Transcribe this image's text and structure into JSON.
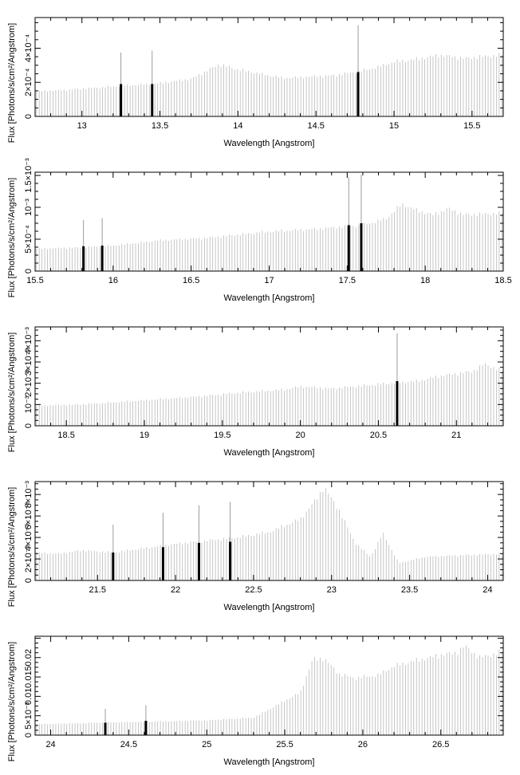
{
  "chart_data": [
    {
      "type": "bar",
      "xlabel": "Wavelength [Angstrom]",
      "ylabel": "Flux [Photons/s/cm²/Angstrom]",
      "xlim": [
        12.7,
        15.7
      ],
      "ylim": [
        0,
        0.00058
      ],
      "x_ticks": [
        13,
        13.5,
        14,
        14.5,
        15,
        15.5
      ],
      "x_tick_labels": [
        "13",
        "13.5",
        "14",
        "14.5",
        "15",
        "15.5"
      ],
      "y_ticks": [
        0,
        0.0002,
        0.0004
      ],
      "y_tick_labels": [
        "0",
        "2×10⁻⁴",
        "4×10⁻⁴"
      ],
      "continuum": {
        "x": [
          12.7,
          12.9,
          13.2,
          13.5,
          13.7,
          13.88,
          14.0,
          14.2,
          14.3,
          14.6,
          14.75,
          14.9,
          15.0,
          15.1,
          15.3,
          15.45,
          15.55,
          15.7
        ],
        "y": [
          0.000148,
          0.000155,
          0.000175,
          0.000195,
          0.00022,
          0.000305,
          0.000275,
          0.00024,
          0.000225,
          0.00024,
          0.000258,
          0.00029,
          0.00032,
          0.00033,
          0.00036,
          0.00034,
          0.00035,
          0.00036
        ]
      },
      "lines": {
        "x": [
          13.25,
          13.45,
          14.77
        ],
        "y": [
          0.00019,
          0.00019,
          0.00026
        ],
        "err": [
          0.000375,
          0.000385,
          0.000535
        ]
      }
    },
    {
      "type": "bar",
      "xlabel": "Wavelength [Angstrom]",
      "ylabel": "Flux [Photons/s/cm²/Angstrom]",
      "xlim": [
        15.5,
        18.5
      ],
      "ylim": [
        0,
        0.00155
      ],
      "x_ticks": [
        15.5,
        16,
        16.5,
        17,
        17.5,
        18,
        18.5
      ],
      "x_tick_labels": [
        "15.5",
        "16",
        "16.5",
        "17",
        "17.5",
        "18",
        "18.5"
      ],
      "y_ticks": [
        0,
        0.0005,
        0.001,
        0.0015
      ],
      "y_tick_labels": [
        "0",
        "5×10⁻⁴",
        "10⁻³",
        "1.5×10⁻³"
      ],
      "continuum": {
        "x": [
          15.5,
          15.8,
          16.0,
          16.3,
          16.6,
          17.0,
          17.3,
          17.6,
          17.75,
          17.85,
          17.95,
          18.05,
          18.15,
          18.25,
          18.5
        ],
        "y": [
          0.00035,
          0.00037,
          0.0004,
          0.00048,
          0.00052,
          0.00062,
          0.00066,
          0.00072,
          0.00082,
          0.00105,
          0.00095,
          0.00088,
          0.00098,
          0.00088,
          0.00091
        ]
      },
      "lines": {
        "x": [
          15.81,
          15.93,
          17.51,
          17.59
        ],
        "y": [
          0.00039,
          0.0004,
          0.00072,
          0.00075
        ],
        "err": [
          0.0008,
          0.00083,
          0.00147,
          0.00151
        ]
      }
    },
    {
      "type": "bar",
      "xlabel": "Wavelength [Angstrom]",
      "ylabel": "Flux [Photons/s/cm²/Angstrom]",
      "xlim": [
        18.3,
        21.3
      ],
      "ylim": [
        0,
        0.00465
      ],
      "x_ticks": [
        18.5,
        19,
        19.5,
        20,
        20.5,
        21
      ],
      "x_tick_labels": [
        "18.5",
        "19",
        "19.5",
        "20",
        "20.5",
        "21"
      ],
      "y_ticks": [
        0,
        0.001,
        0.002,
        0.003,
        0.004
      ],
      "y_tick_labels": [
        "0",
        "10⁻³",
        "2×10⁻³",
        "3×10⁻³",
        "4×10⁻³"
      ],
      "continuum": {
        "x": [
          18.3,
          18.6,
          19.0,
          19.3,
          19.6,
          19.9,
          20.0,
          20.2,
          20.5,
          20.75,
          20.9,
          21.1,
          21.18,
          21.3
        ],
        "y": [
          0.00095,
          0.001,
          0.0012,
          0.00135,
          0.00155,
          0.0017,
          0.00185,
          0.00175,
          0.00195,
          0.0021,
          0.00235,
          0.00255,
          0.0029,
          0.00255
        ]
      },
      "lines": {
        "x": [
          20.62
        ],
        "y": [
          0.0021
        ],
        "err": [
          0.00435
        ]
      }
    },
    {
      "type": "bar",
      "xlabel": "Wavelength [Angstrom]",
      "ylabel": "Flux [Photons/s/cm²/Angstrom]",
      "xlim": [
        21.1,
        24.1
      ],
      "ylim": [
        0,
        0.0092
      ],
      "x_ticks": [
        21.5,
        22,
        22.5,
        23,
        23.5,
        24
      ],
      "x_tick_labels": [
        "21.5",
        "22",
        "22.5",
        "23",
        "23.5",
        "24"
      ],
      "y_ticks": [
        0,
        0.002,
        0.004,
        0.006,
        0.008
      ],
      "y_tick_labels": [
        "0",
        "2×10⁻³",
        "4×10⁻³",
        "6×10⁻³",
        "8×10⁻³"
      ],
      "continuum": {
        "x": [
          21.1,
          21.25,
          21.4,
          21.5,
          21.6,
          22.0,
          22.4,
          22.6,
          22.8,
          22.9,
          22.95,
          23.05,
          23.15,
          23.25,
          23.33,
          23.43,
          23.6,
          24.1
        ],
        "y": [
          0.0026,
          0.0025,
          0.0028,
          0.0027,
          0.0026,
          0.0034,
          0.004,
          0.0045,
          0.0057,
          0.0075,
          0.0087,
          0.0065,
          0.0035,
          0.0022,
          0.0044,
          0.0016,
          0.0022,
          0.0025
        ]
      },
      "lines": {
        "x": [
          21.6,
          21.92,
          22.15,
          22.35
        ],
        "y": [
          0.0026,
          0.0031,
          0.0035,
          0.0036
        ],
        "err": [
          0.0052,
          0.0063,
          0.007,
          0.0073
        ]
      }
    },
    {
      "type": "bar",
      "xlabel": "Wavelength [Angstrom]",
      "ylabel": "Flux [Photons/s/cm²/Angstrom]",
      "xlim": [
        23.9,
        26.9
      ],
      "ylim": [
        0,
        0.0255
      ],
      "x_ticks": [
        24,
        24.5,
        25,
        25.5,
        26,
        26.5
      ],
      "x_tick_labels": [
        "24",
        "24.5",
        "25",
        "25.5",
        "26",
        "26.5"
      ],
      "y_ticks": [
        0,
        0.005,
        0.01,
        0.015,
        0.02
      ],
      "y_tick_labels": [
        "0",
        "5×10⁻³",
        "0.01",
        "0.015",
        "0.02"
      ],
      "continuum": {
        "x": [
          23.9,
          24.4,
          25.0,
          25.3,
          25.6,
          25.68,
          25.75,
          25.85,
          25.95,
          26.1,
          26.2,
          26.35,
          26.5,
          26.6,
          26.65,
          26.75,
          26.9
        ],
        "y": [
          0.0028,
          0.0033,
          0.0038,
          0.0045,
          0.011,
          0.0196,
          0.0198,
          0.0157,
          0.0147,
          0.0155,
          0.0178,
          0.0193,
          0.0207,
          0.0212,
          0.023,
          0.02,
          0.0215
        ]
      },
      "lines": {
        "x": [
          24.35,
          24.61
        ],
        "y": [
          0.0032,
          0.0037
        ],
        "err": [
          0.0068,
          0.0077
        ]
      }
    }
  ]
}
